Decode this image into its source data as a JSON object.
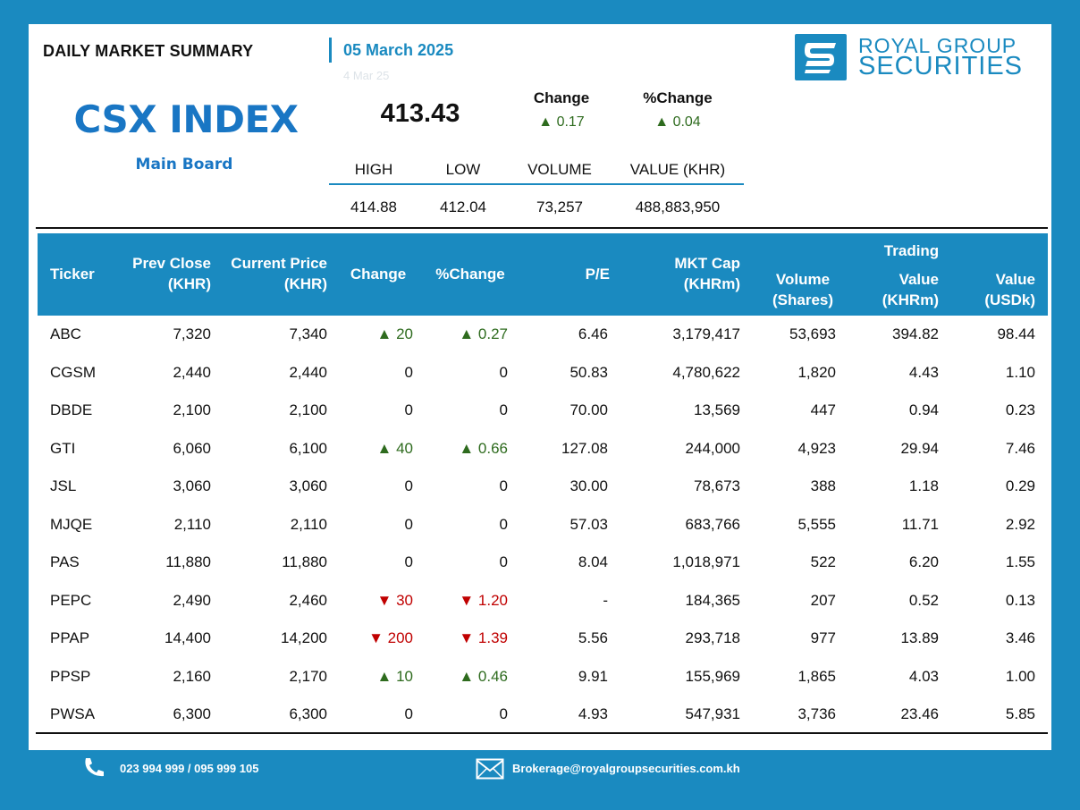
{
  "header": {
    "title": "DAILY MARKET SUMMARY",
    "date": "05 March 2025",
    "ghost_text": "4 Mar 25"
  },
  "logo": {
    "line1": "ROYAL GROUP",
    "line2": "SECURITIES"
  },
  "index": {
    "name": "CSX INDEX",
    "board": "Main Board",
    "value": "413.43",
    "change_label": "Change",
    "pct_change_label": "%Change",
    "change": "▲ 0.17",
    "pct_change": "▲ 0.04"
  },
  "stats": {
    "headers": [
      "HIGH",
      "LOW",
      "VOLUME",
      "VALUE (KHR)"
    ],
    "values": [
      "414.88",
      "412.04",
      "73,257",
      "488,883,950"
    ]
  },
  "table": {
    "headers": {
      "ticker": "Ticker",
      "prev_close_1": "Prev Close",
      "prev_close_2": "(KHR)",
      "current_1": "Current Price",
      "current_2": "(KHR)",
      "change": "Change",
      "pct_change": "%Change",
      "pe": "P/E",
      "mktcap_1": "MKT Cap",
      "mktcap_2": "(KHRm)",
      "volume_1": "Volume",
      "volume_2": "(Shares)",
      "trading": "Trading",
      "value_khr_1": "Value",
      "value_khr_2": "(KHRm)",
      "value_usd_1": "Value",
      "value_usd_2": "(USDk)"
    },
    "rows": [
      {
        "ticker": "ABC",
        "prev": "7,320",
        "cur": "7,340",
        "chg": "▲ 20",
        "pct": "▲ 0.27",
        "dir": "up",
        "pe": "6.46",
        "mcap": "3,179,417",
        "vol": "53,693",
        "vkhr": "394.82",
        "vusd": "98.44"
      },
      {
        "ticker": "CGSM",
        "prev": "2,440",
        "cur": "2,440",
        "chg": "0",
        "pct": "0",
        "dir": "flat",
        "pe": "50.83",
        "mcap": "4,780,622",
        "vol": "1,820",
        "vkhr": "4.43",
        "vusd": "1.10"
      },
      {
        "ticker": "DBDE",
        "prev": "2,100",
        "cur": "2,100",
        "chg": "0",
        "pct": "0",
        "dir": "flat",
        "pe": "70.00",
        "mcap": "13,569",
        "vol": "447",
        "vkhr": "0.94",
        "vusd": "0.23"
      },
      {
        "ticker": "GTI",
        "prev": "6,060",
        "cur": "6,100",
        "chg": "▲ 40",
        "pct": "▲ 0.66",
        "dir": "up",
        "pe": "127.08",
        "mcap": "244,000",
        "vol": "4,923",
        "vkhr": "29.94",
        "vusd": "7.46"
      },
      {
        "ticker": "JSL",
        "prev": "3,060",
        "cur": "3,060",
        "chg": "0",
        "pct": "0",
        "dir": "flat",
        "pe": "30.00",
        "mcap": "78,673",
        "vol": "388",
        "vkhr": "1.18",
        "vusd": "0.29"
      },
      {
        "ticker": "MJQE",
        "prev": "2,110",
        "cur": "2,110",
        "chg": "0",
        "pct": "0",
        "dir": "flat",
        "pe": "57.03",
        "mcap": "683,766",
        "vol": "5,555",
        "vkhr": "11.71",
        "vusd": "2.92"
      },
      {
        "ticker": "PAS",
        "prev": "11,880",
        "cur": "11,880",
        "chg": "0",
        "pct": "0",
        "dir": "flat",
        "pe": "8.04",
        "mcap": "1,018,971",
        "vol": "522",
        "vkhr": "6.20",
        "vusd": "1.55"
      },
      {
        "ticker": "PEPC",
        "prev": "2,490",
        "cur": "2,460",
        "chg": "▼ 30",
        "pct": "▼ 1.20",
        "dir": "down",
        "pe": "-",
        "mcap": "184,365",
        "vol": "207",
        "vkhr": "0.52",
        "vusd": "0.13"
      },
      {
        "ticker": "PPAP",
        "prev": "14,400",
        "cur": "14,200",
        "chg": "▼ 200",
        "pct": "▼ 1.39",
        "dir": "down",
        "pe": "5.56",
        "mcap": "293,718",
        "vol": "977",
        "vkhr": "13.89",
        "vusd": "3.46"
      },
      {
        "ticker": "PPSP",
        "prev": "2,160",
        "cur": "2,170",
        "chg": "▲ 10",
        "pct": "▲ 0.46",
        "dir": "up",
        "pe": "9.91",
        "mcap": "155,969",
        "vol": "1,865",
        "vkhr": "4.03",
        "vusd": "1.00"
      },
      {
        "ticker": "PWSA",
        "prev": "6,300",
        "cur": "6,300",
        "chg": "0",
        "pct": "0",
        "dir": "flat",
        "pe": "4.93",
        "mcap": "547,931",
        "vol": "3,736",
        "vkhr": "23.46",
        "vusd": "5.85"
      }
    ]
  },
  "footer": {
    "phone": "023 994 999 / 095 999 105",
    "email": "Brokerage@royalgroupsecurities.com.kh"
  },
  "colors": {
    "brand_blue": "#1a8ac0",
    "title_blue": "#1976c4",
    "up_green": "#2e6b1e",
    "down_red": "#c00000"
  },
  "icons": {
    "phone": "phone-icon",
    "email": "envelope-icon",
    "logo": "rgs-logo-icon"
  }
}
